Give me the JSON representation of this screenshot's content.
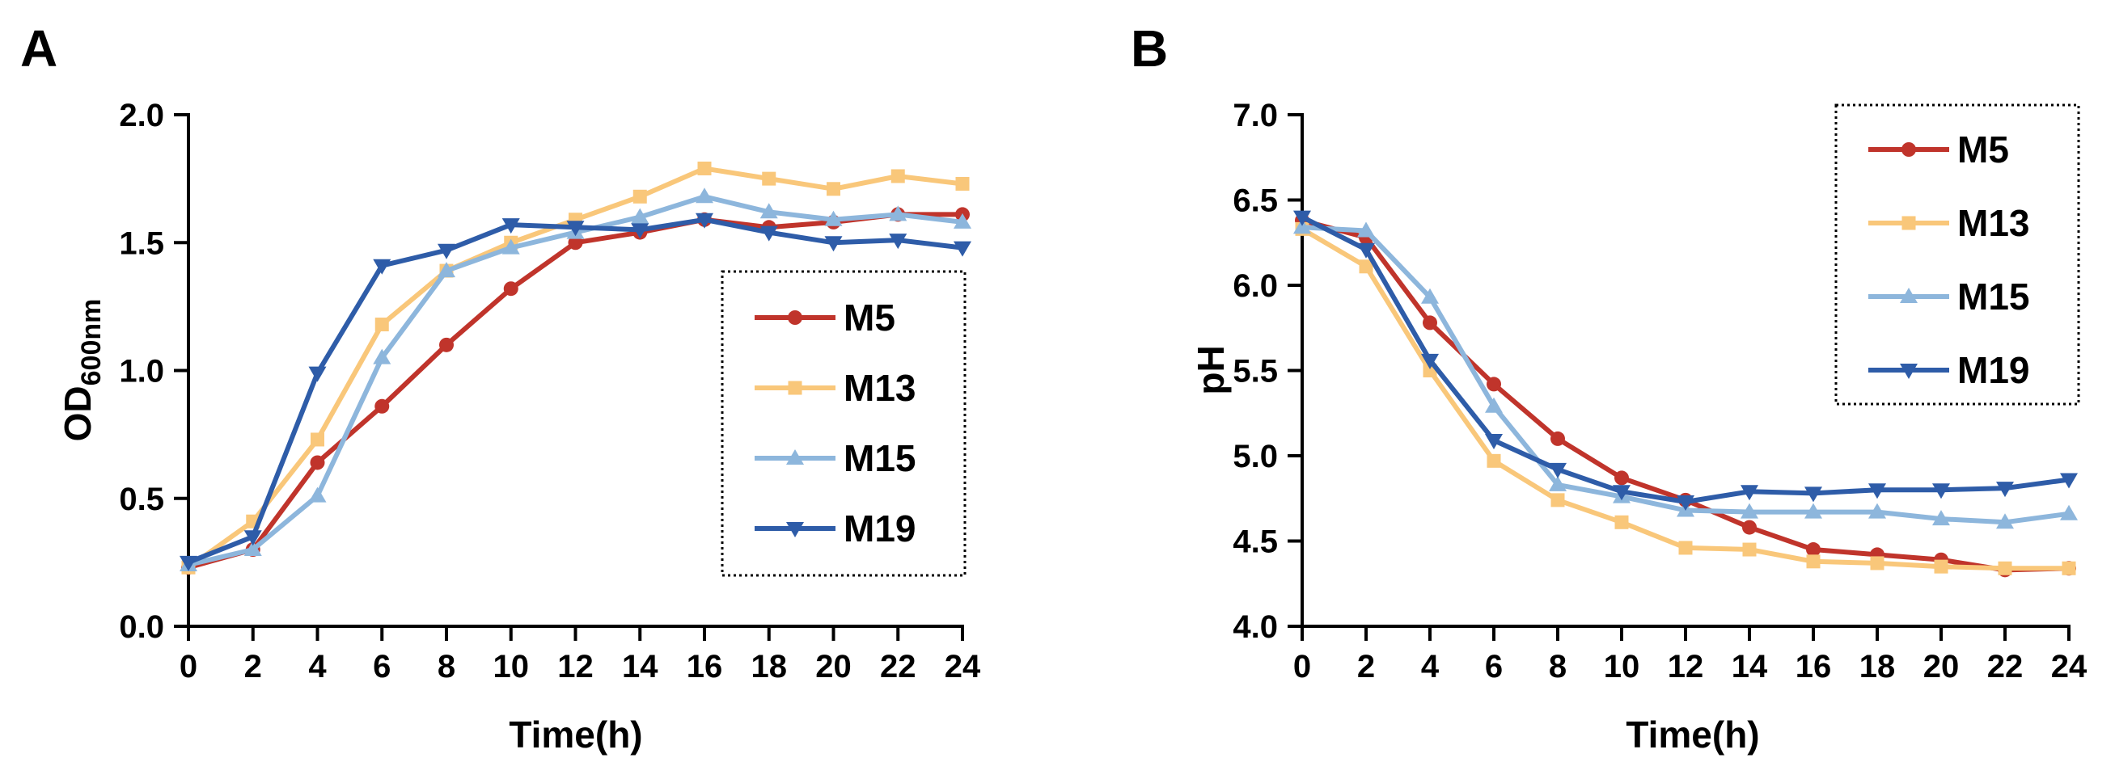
{
  "figure": {
    "panels": [
      "A",
      "B"
    ]
  },
  "chart_data": [
    {
      "id": "A",
      "type": "line",
      "panel_label": "A",
      "title": "",
      "xlabel": "Time(h)",
      "ylabel_main": "OD",
      "ylabel_sub": "600nm",
      "x": [
        0,
        2,
        4,
        6,
        8,
        10,
        12,
        14,
        16,
        18,
        20,
        22,
        24
      ],
      "xlim": [
        0,
        24
      ],
      "xticks": [
        0,
        2,
        4,
        6,
        8,
        10,
        12,
        14,
        16,
        18,
        20,
        22,
        24
      ],
      "xtick_labels": [
        "0",
        "2",
        "4",
        "6",
        "8",
        "10",
        "12",
        "14",
        "16",
        "18",
        "20",
        "22",
        "24"
      ],
      "ylim": [
        0,
        2.0
      ],
      "yticks": [
        0,
        0.5,
        1.0,
        1.5,
        2.0
      ],
      "ytick_labels": [
        "0.0",
        "0.5",
        "1.0",
        "1.5",
        "2.0"
      ],
      "grid": false,
      "legend_position": "center-right",
      "series": [
        {
          "name": "M5",
          "color": "#C0342B",
          "marker": "circle",
          "values": [
            0.23,
            0.3,
            0.64,
            0.86,
            1.1,
            1.32,
            1.5,
            1.54,
            1.59,
            1.56,
            1.58,
            1.61,
            1.61
          ]
        },
        {
          "name": "M13",
          "color": "#F9C77A",
          "marker": "square",
          "values": [
            0.23,
            0.41,
            0.73,
            1.18,
            1.39,
            1.5,
            1.59,
            1.68,
            1.79,
            1.75,
            1.71,
            1.76,
            1.73
          ]
        },
        {
          "name": "M15",
          "color": "#8DB6DC",
          "marker": "triangle-up",
          "values": [
            0.24,
            0.3,
            0.51,
            1.05,
            1.39,
            1.48,
            1.54,
            1.6,
            1.68,
            1.62,
            1.59,
            1.61,
            1.58
          ]
        },
        {
          "name": "M19",
          "color": "#2E5CA8",
          "marker": "triangle-down",
          "values": [
            0.25,
            0.35,
            0.99,
            1.41,
            1.47,
            1.57,
            1.56,
            1.55,
            1.59,
            1.54,
            1.5,
            1.51,
            1.48
          ]
        }
      ]
    },
    {
      "id": "B",
      "type": "line",
      "panel_label": "B",
      "title": "",
      "xlabel": "Time(h)",
      "ylabel_main": "pH",
      "ylabel_sub": "",
      "x": [
        0,
        2,
        4,
        6,
        8,
        10,
        12,
        14,
        16,
        18,
        20,
        22,
        24
      ],
      "xlim": [
        0,
        24
      ],
      "xticks": [
        0,
        2,
        4,
        6,
        8,
        10,
        12,
        14,
        16,
        18,
        20,
        22,
        24
      ],
      "xtick_labels": [
        "0",
        "2",
        "4",
        "6",
        "8",
        "10",
        "12",
        "14",
        "16",
        "18",
        "20",
        "22",
        "24"
      ],
      "ylim": [
        4.0,
        7.0
      ],
      "yticks": [
        4.0,
        4.5,
        5.0,
        5.5,
        6.0,
        6.5,
        7.0
      ],
      "ytick_labels": [
        "4.0",
        "4.5",
        "5.0",
        "5.5",
        "6.0",
        "6.5",
        "7.0"
      ],
      "grid": false,
      "legend_position": "top-right",
      "series": [
        {
          "name": "M5",
          "color": "#C0342B",
          "marker": "circle",
          "values": [
            6.38,
            6.28,
            5.78,
            5.42,
            5.1,
            4.87,
            4.74,
            4.58,
            4.45,
            4.42,
            4.39,
            4.33,
            4.34
          ]
        },
        {
          "name": "M13",
          "color": "#F9C77A",
          "marker": "square",
          "values": [
            6.33,
            6.11,
            5.5,
            4.97,
            4.74,
            4.61,
            4.46,
            4.45,
            4.38,
            4.37,
            4.35,
            4.34,
            4.34
          ]
        },
        {
          "name": "M15",
          "color": "#8DB6DC",
          "marker": "triangle-up",
          "values": [
            6.34,
            6.32,
            5.93,
            5.29,
            4.83,
            4.76,
            4.68,
            4.67,
            4.67,
            4.67,
            4.63,
            4.61,
            4.66
          ]
        },
        {
          "name": "M19",
          "color": "#2E5CA8",
          "marker": "triangle-down",
          "values": [
            6.4,
            6.21,
            5.56,
            5.09,
            4.92,
            4.79,
            4.73,
            4.79,
            4.78,
            4.8,
            4.8,
            4.81,
            4.86
          ]
        }
      ]
    }
  ]
}
